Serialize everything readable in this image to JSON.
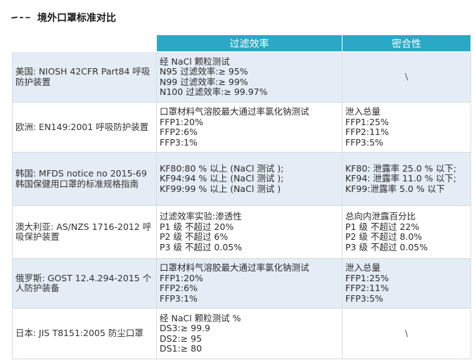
{
  "title": "境外口罩标准对比",
  "headers": {
    "filtration": "过滤效率",
    "fit": "密合性"
  },
  "rows": [
    {
      "standard": "美国: NIOSH 42CFR Part84 呼吸防护装置",
      "filtration": [
        "经 NaCl 颗粒测试",
        "N95 过滤效率:≥ 95%",
        "N99 过滤效率:≥ 99%",
        "N100 过滤效率:≥ 99.97%"
      ],
      "fit": [
        "\\"
      ]
    },
    {
      "standard": "欧洲: EN149:2001 呼吸防护装置",
      "filtration": [
        "口罩材料气溶胶最大通过率氯化钠测试",
        "FFP1:20%",
        "FFP2:6%",
        "FFP3:1%"
      ],
      "fit": [
        "泄入总量",
        "FFP1:25%",
        "FFP2:11%",
        "FFP3:5%"
      ]
    },
    {
      "standard": "韩国: MFDS notice no 2015-69 韩国保健用口罩的标准规格指南",
      "filtration": [
        "KF80:80 % 以上 (NaCl 测试 );",
        "KF94:94 % 以上 (NaCl 测试 );",
        "KF99:99 % 以上 (NaCl 测试 )"
      ],
      "fit": [
        "KF80: 泄露率 25.0 % 以下;",
        "KF94: 泄露率 11.0 % 以下;",
        "KF99:泄露率 5.0 % 以下"
      ]
    },
    {
      "standard": "澳大利亚: AS/NZS 1716-2012 呼吸保护装置",
      "filtration": [
        "过滤效率实验:渗透性",
        "P1 级 不超过 20%",
        "P2 级 不超过 6%",
        "P3 级 不超过 0.05%"
      ],
      "fit": [
        "总向内泄露百分比",
        "P1 级 不超过 22%",
        "P2 级 不超过 8.0%",
        "P3 级 不超过 0.05%"
      ]
    },
    {
      "standard": "俄罗斯: GOST 12.4.294-2015 个人防护装备",
      "filtration": [
        "口罩材料气溶胶最大通过率氯化钠测试",
        "FFP1:20%",
        "FFP2:6%",
        "FFP3:1%"
      ],
      "fit": [
        "泄入总量",
        "FFP1:25%",
        "FFP2:11%",
        "FFP3:5%"
      ]
    },
    {
      "standard": "日本: JIS T8151:2005 防尘口罩",
      "filtration": [
        "经 NaCl 颗粒测试 %",
        "DS3:≥ 99.9",
        "DS2:≥ 95",
        "DS1:≥ 80"
      ],
      "fit": [
        "\\"
      ]
    }
  ]
}
